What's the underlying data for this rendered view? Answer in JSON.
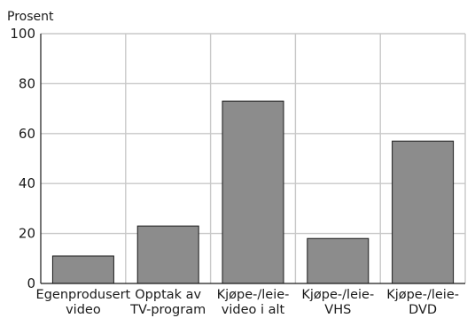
{
  "chart_data": {
    "type": "bar",
    "ylabel": "Prosent",
    "xlabel": "",
    "ylim": [
      0,
      100
    ],
    "yticks": [
      0,
      20,
      40,
      60,
      80,
      100
    ],
    "grid": true,
    "categories": [
      [
        "Egenprodusert",
        "video"
      ],
      [
        "Opptak av",
        "TV-program"
      ],
      [
        "Kjøpe-/leie-",
        "video i alt"
      ],
      [
        "Kjøpe-/leie-",
        "VHS"
      ],
      [
        "Kjøpe-/leie-",
        "DVD"
      ]
    ],
    "values": [
      11,
      23,
      73,
      18,
      57
    ],
    "colors": {
      "bar": "#8c8c8c",
      "bar_edge": "#1a1a1a",
      "grid": "#c8c8c8",
      "axis": "#1a1a1a"
    }
  }
}
